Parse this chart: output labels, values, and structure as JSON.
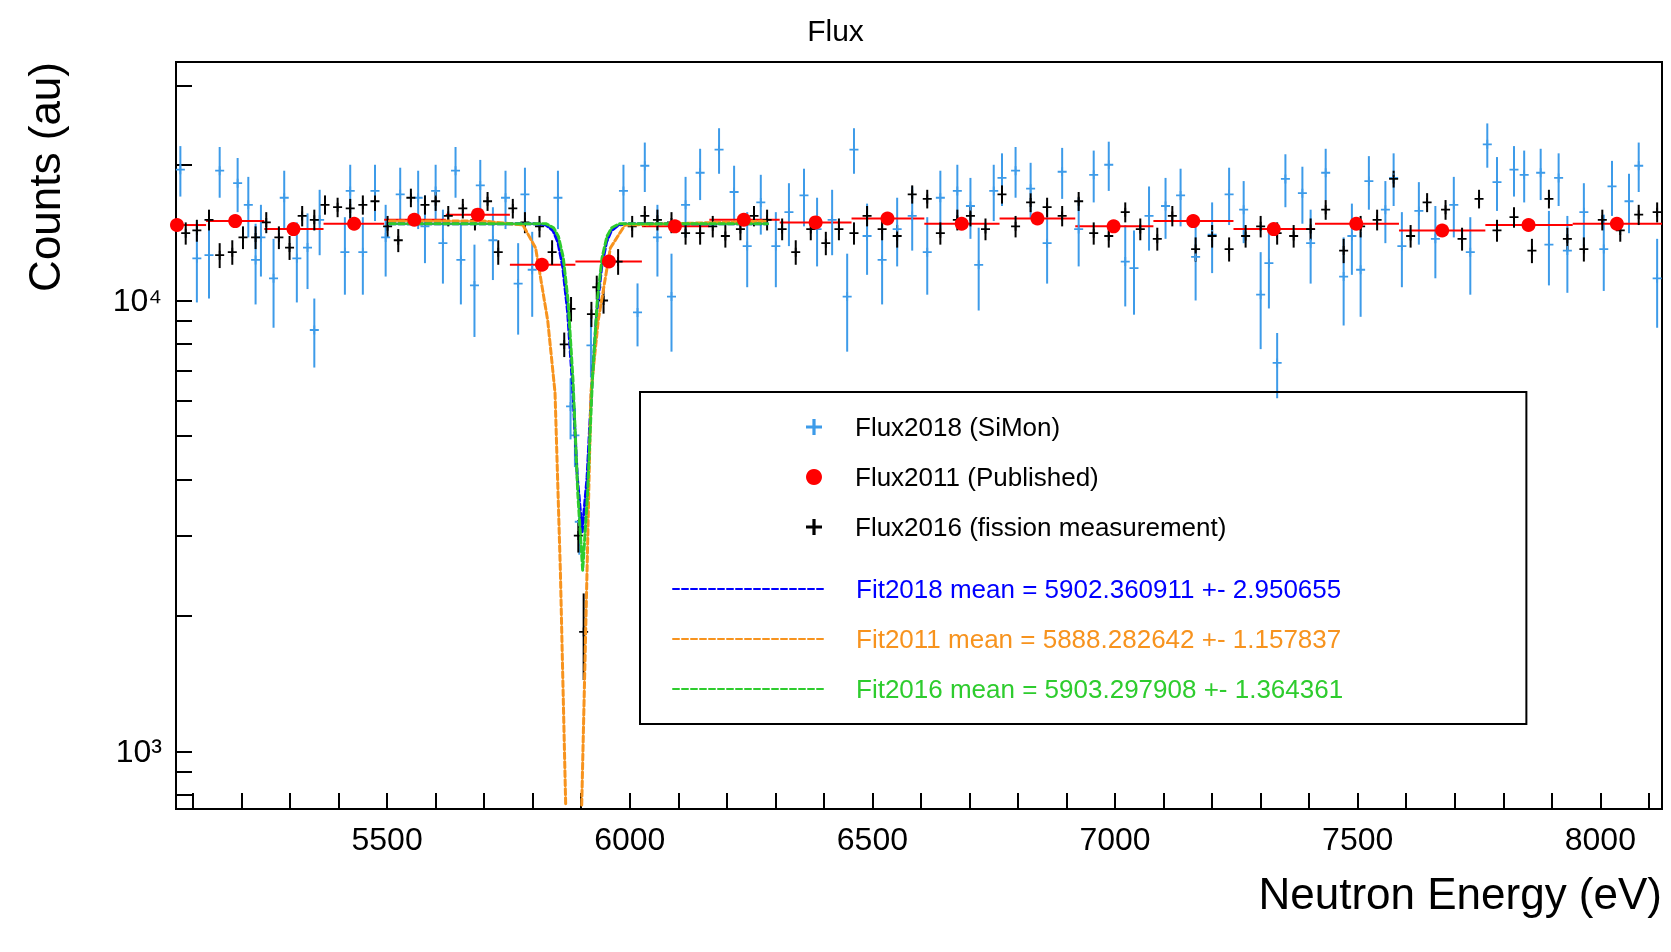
{
  "chart_data": {
    "type": "scatter",
    "title": "Flux",
    "xlabel": "Neutron Energy (eV)",
    "ylabel": "Counts (au)",
    "xlim": [
      5065,
      8127
    ],
    "xticks": [
      {
        "value": 5100,
        "label": null
      },
      {
        "value": 5200,
        "label": null
      },
      {
        "value": 5300,
        "label": null
      },
      {
        "value": 5400,
        "label": null
      },
      5500,
      {
        "value": 5600,
        "label": null
      },
      {
        "value": 5700,
        "label": null
      },
      {
        "value": 5800,
        "label": null
      },
      {
        "value": 5900,
        "label": null
      },
      6000,
      {
        "value": 6100,
        "label": null
      },
      {
        "value": 6200,
        "label": null
      },
      {
        "value": 6300,
        "label": null
      },
      {
        "value": 6400,
        "label": null
      },
      6500,
      {
        "value": 6600,
        "label": null
      },
      {
        "value": 6700,
        "label": null
      },
      {
        "value": 6800,
        "label": null
      },
      {
        "value": 6900,
        "label": null
      },
      7000,
      {
        "value": 7100,
        "label": null
      },
      {
        "value": 7200,
        "label": null
      },
      {
        "value": 7300,
        "label": null
      },
      {
        "value": 7400,
        "label": null
      },
      7500,
      {
        "value": 7600,
        "label": null
      },
      {
        "value": 7700,
        "label": null
      },
      {
        "value": 7800,
        "label": null
      },
      {
        "value": 7900,
        "label": null
      },
      8000,
      {
        "value": 8100,
        "label": null
      }
    ],
    "ylim": [
      745,
      33800
    ],
    "yticks": [
      {
        "value": 800,
        "label": null
      },
      {
        "value": 900,
        "label": null
      },
      {
        "value": 1000,
        "label": "10³"
      },
      {
        "value": 2000,
        "label": null
      },
      {
        "value": 3000,
        "label": null
      },
      {
        "value": 4000,
        "label": null
      },
      {
        "value": 5000,
        "label": null
      },
      {
        "value": 6000,
        "label": null
      },
      {
        "value": 7000,
        "label": null
      },
      {
        "value": 8000,
        "label": null
      },
      {
        "value": 9000,
        "label": null
      },
      {
        "value": 10000,
        "label": "10⁴"
      },
      {
        "value": 20000,
        "label": null
      },
      {
        "value": 30000,
        "label": null
      }
    ],
    "log": "y",
    "legend": "bottom right",
    "series": [
      {
        "name": "Flux2018 (SiMon)",
        "color": "#3d9be9",
        "marker": "cross",
        "x": [
          5074,
          5108,
          5133,
          5155,
          5192,
          5214,
          5229,
          5240,
          5266,
          5288,
          5314,
          5336,
          5350,
          5361,
          5413,
          5424,
          5450,
          5475,
          5497,
          5527,
          5564,
          5578,
          5600,
          5615,
          5641,
          5652,
          5680,
          5692,
          5718,
          5744,
          5770,
          5784,
          5799,
          5852,
          5878,
          5887,
          5896,
          5920,
          5987,
          6016,
          6031,
          6057,
          6086,
          6115,
          6145,
          6184,
          6215,
          6242,
          6270,
          6301,
          6328,
          6359,
          6386,
          6417,
          6448,
          6462,
          6489,
          6520,
          6551,
          6582,
          6613,
          6640,
          6675,
          6702,
          6719,
          6750,
          6767,
          6795,
          6826,
          6860,
          6891,
          6925,
          6956,
          6987,
          7021,
          7039,
          7070,
          7104,
          7135,
          7166,
          7200,
          7235,
          7265,
          7300,
          7317,
          7334,
          7351,
          7386,
          7403,
          7434,
          7471,
          7488,
          7506,
          7523,
          7557,
          7574,
          7591,
          7626,
          7660,
          7698,
          7732,
          7767,
          7787,
          7822,
          7843,
          7877,
          7894,
          7914,
          7932,
          7966,
          8007,
          8024,
          8059,
          8079,
          8117
        ],
        "values": [
          19500,
          12400,
          12600,
          19400,
          18200,
          16300,
          12300,
          13800,
          11200,
          16900,
          12400,
          13100,
          8600,
          15100,
          12800,
          17500,
          12800,
          17500,
          13800,
          17200,
          16900,
          14600,
          17500,
          13400,
          19400,
          12300,
          10800,
          18000,
          13600,
          16900,
          10900,
          17200,
          11700,
          16900,
          5820,
          5020,
          3230,
          7950,
          17500,
          9410,
          19900,
          13800,
          10200,
          16300,
          19200,
          21600,
          17400,
          13200,
          16500,
          13200,
          15700,
          17100,
          14400,
          15100,
          10200,
          21600,
          13900,
          12300,
          14400,
          15400,
          12800,
          16900,
          17500,
          16200,
          12000,
          17500,
          18700,
          19400,
          17700,
          13400,
          19300,
          14400,
          19000,
          20000,
          12200,
          11800,
          15400,
          16200,
          17100,
          12500,
          14000,
          17200,
          15900,
          10300,
          12100,
          7270,
          18600,
          17300,
          13400,
          19200,
          11300,
          13900,
          11700,
          18400,
          15900,
          18700,
          13200,
          15800,
          13700,
          16300,
          12800,
          22200,
          18300,
          19500,
          19000,
          19200,
          13300,
          18700,
          12900,
          15700,
          13000,
          17900,
          16600,
          19900,
          11200
        ],
        "errors": [
          2500,
          2500,
          2500,
          2500,
          2500,
          2500,
          2500,
          2500,
          2500,
          2500,
          2500,
          2500,
          1500,
          2500,
          2500,
          2500,
          2500,
          2500,
          2500,
          2500,
          2500,
          2500,
          2500,
          2500,
          2500,
          2500,
          2500,
          2500,
          2500,
          2500,
          2500,
          2500,
          2500,
          2500,
          900,
          750,
          500,
          1200,
          2500,
          1500,
          2500,
          2500,
          2500,
          2500,
          2500,
          2500,
          2500,
          2500,
          2500,
          2500,
          2500,
          2500,
          2500,
          2500,
          2500,
          2500,
          2500,
          2500,
          2500,
          2500,
          2500,
          2500,
          2500,
          2500,
          2500,
          2500,
          2500,
          2500,
          2500,
          2500,
          2500,
          2500,
          2500,
          2500,
          2500,
          2500,
          2500,
          2500,
          2500,
          2500,
          2500,
          2500,
          2500,
          2500,
          2500,
          1200,
          2500,
          2500,
          2500,
          2500,
          2500,
          2500,
          2500,
          2500,
          2500,
          2500,
          2500,
          2500,
          2500,
          2500,
          2500,
          2500,
          2500,
          2500,
          2500,
          2500,
          2500,
          2500,
          2500,
          2500,
          2500,
          2500,
          2500,
          2500,
          2500
        ]
      },
      {
        "name": "Flux2011 (Published)",
        "color": "#ff0000",
        "marker": "circle",
        "x": [
          5067,
          5187,
          5307,
          5432,
          5556,
          5687,
          5819,
          5957,
          6093,
          6235,
          6383,
          6531,
          6684,
          6840,
          6997,
          7161,
          7327,
          7497,
          7674,
          7852,
          8034
        ],
        "values": [
          14700,
          15000,
          14400,
          14800,
          15100,
          15500,
          12000,
          12200,
          14600,
          15100,
          14900,
          15200,
          14800,
          15200,
          14600,
          15000,
          14400,
          14800,
          14300,
          14700,
          14800
        ],
        "xerrors": [
          [
            5067,
            5127
          ],
          [
            5127,
            5247
          ],
          [
            5247,
            5369
          ],
          [
            5369,
            5494
          ],
          [
            5494,
            5621
          ],
          [
            5621,
            5753
          ],
          [
            5753,
            5888
          ],
          [
            5888,
            6025
          ],
          [
            6025,
            6164
          ],
          [
            6164,
            6309
          ],
          [
            6309,
            6457
          ],
          [
            6457,
            6607
          ],
          [
            6607,
            6762
          ],
          [
            6762,
            6918
          ],
          [
            6918,
            7079
          ],
          [
            7079,
            7244
          ],
          [
            7244,
            7412
          ],
          [
            7412,
            7585
          ],
          [
            7585,
            7763
          ],
          [
            7763,
            7943
          ],
          [
            7943,
            8127
          ]
        ]
      },
      {
        "name": "Flux2016 (fission measurement)",
        "color": "#000000",
        "marker": "cross",
        "x": [
          5085,
          5108,
          5133,
          5155,
          5181,
          5203,
          5229,
          5251,
          5277,
          5299,
          5325,
          5350,
          5372,
          5398,
          5424,
          5450,
          5475,
          5501,
          5523,
          5549,
          5578,
          5600,
          5626,
          5656,
          5681,
          5707,
          5729,
          5759,
          5784,
          5814,
          5840,
          5865,
          5879,
          5894,
          5905,
          5921,
          5932,
          5946,
          5976,
          6005,
          6031,
          6057,
          6086,
          6115,
          6145,
          6171,
          6197,
          6228,
          6256,
          6283,
          6314,
          6342,
          6373,
          6404,
          6431,
          6462,
          6489,
          6520,
          6551,
          6582,
          6613,
          6640,
          6675,
          6702,
          6733,
          6767,
          6795,
          6826,
          6860,
          6891,
          6925,
          6956,
          6987,
          7021,
          7052,
          7087,
          7118,
          7166,
          7200,
          7235,
          7269,
          7300,
          7334,
          7368,
          7403,
          7434,
          7471,
          7506,
          7540,
          7574,
          7609,
          7643,
          7681,
          7715,
          7750,
          7787,
          7822,
          7859,
          7894,
          7932,
          7966,
          8004,
          8041,
          8079,
          8117
        ],
        "values": [
          14100,
          14300,
          15100,
          12600,
          12800,
          13800,
          13800,
          14900,
          13800,
          13100,
          15400,
          15100,
          16300,
          16100,
          16000,
          16300,
          16600,
          14600,
          13600,
          16900,
          16300,
          16600,
          15400,
          16000,
          15100,
          16600,
          12800,
          16000,
          14900,
          14600,
          12800,
          7990,
          9580,
          3010,
          1840,
          9330,
          10700,
          10000,
          12200,
          14600,
          15400,
          15100,
          14900,
          14100,
          14100,
          14600,
          13900,
          14400,
          15400,
          15100,
          14400,
          12800,
          14400,
          13400,
          14400,
          14100,
          15400,
          14400,
          13900,
          17200,
          16800,
          14100,
          15100,
          15400,
          14400,
          17200,
          14600,
          16500,
          16100,
          15400,
          16600,
          14100,
          13900,
          15700,
          14400,
          13700,
          15400,
          13000,
          13900,
          13000,
          13900,
          14600,
          14100,
          13900,
          14400,
          15900,
          12900,
          14600,
          15100,
          18600,
          13900,
          16500,
          15900,
          13700,
          16800,
          14300,
          15300,
          12900,
          16800,
          13700,
          13000,
          15100,
          14300,
          15500,
          15700
        ],
        "errors": [
          800,
          800,
          800,
          800,
          800,
          800,
          800,
          800,
          800,
          800,
          800,
          800,
          800,
          800,
          800,
          800,
          800,
          800,
          800,
          800,
          800,
          800,
          800,
          800,
          800,
          800,
          800,
          800,
          800,
          800,
          800,
          500,
          600,
          250,
          400,
          600,
          650,
          650,
          800,
          800,
          800,
          800,
          800,
          800,
          800,
          800,
          800,
          800,
          800,
          800,
          800,
          800,
          800,
          800,
          800,
          800,
          800,
          800,
          800,
          800,
          800,
          800,
          800,
          800,
          800,
          800,
          800,
          800,
          800,
          800,
          800,
          800,
          800,
          800,
          800,
          800,
          800,
          800,
          800,
          800,
          800,
          800,
          800,
          800,
          800,
          800,
          800,
          800,
          800,
          800,
          800,
          800,
          800,
          800,
          800,
          800,
          800,
          800,
          800,
          800,
          800,
          800,
          800,
          800,
          800
        ]
      },
      {
        "name": "Fit2018 mean = 5902.360911 +- 2.950655",
        "type": "line",
        "color": "#0000ff",
        "line_style": "dashed",
        "marker": "none",
        "x": [
          5505,
          5700,
          5800,
          5827,
          5842,
          5852,
          5862,
          5872,
          5882,
          5892,
          5902,
          5912,
          5922,
          5932,
          5942,
          5952,
          5962,
          5977,
          6000,
          6284
        ],
        "values": [
          14800,
          14800,
          14800,
          14710,
          14280,
          13460,
          11850,
          9430,
          6510,
          4040,
          3070,
          4040,
          6510,
          9430,
          11850,
          13460,
          14280,
          14710,
          14800,
          14800
        ]
      },
      {
        "name": "Fit2011 mean = 5888.282642 +- 1.157837",
        "type": "line",
        "color": "#f7931e",
        "line_style": "dashed",
        "marker": "none",
        "x": [
          5505,
          5700,
          5780,
          5806,
          5831,
          5846,
          5857,
          5868,
          5884,
          5901,
          5912,
          5920,
          5935,
          5960,
          5990,
          6284
        ],
        "values": [
          15000,
          15000,
          14700,
          13070,
          9020,
          6250,
          2520,
          760,
          null,
          760,
          2520,
          6250,
          9020,
          13070,
          14700,
          15000
        ]
      },
      {
        "name": "Fit2016 mean = 5903.297908 +- 1.364361",
        "type": "line",
        "color": "#2ecc2e",
        "line_style": "dashed",
        "marker": "none",
        "x": [
          5505,
          5700,
          5800,
          5828,
          5843,
          5853,
          5863,
          5873,
          5883,
          5893,
          5903,
          5913,
          5923,
          5933,
          5943,
          5953,
          5963,
          5978,
          6000,
          6284
        ],
        "values": [
          14800,
          14800,
          14800,
          14790,
          14500,
          13870,
          12450,
          9950,
          6670,
          3720,
          2520,
          3720,
          6670,
          9950,
          12450,
          13870,
          14500,
          14790,
          14800,
          14800
        ]
      }
    ]
  }
}
